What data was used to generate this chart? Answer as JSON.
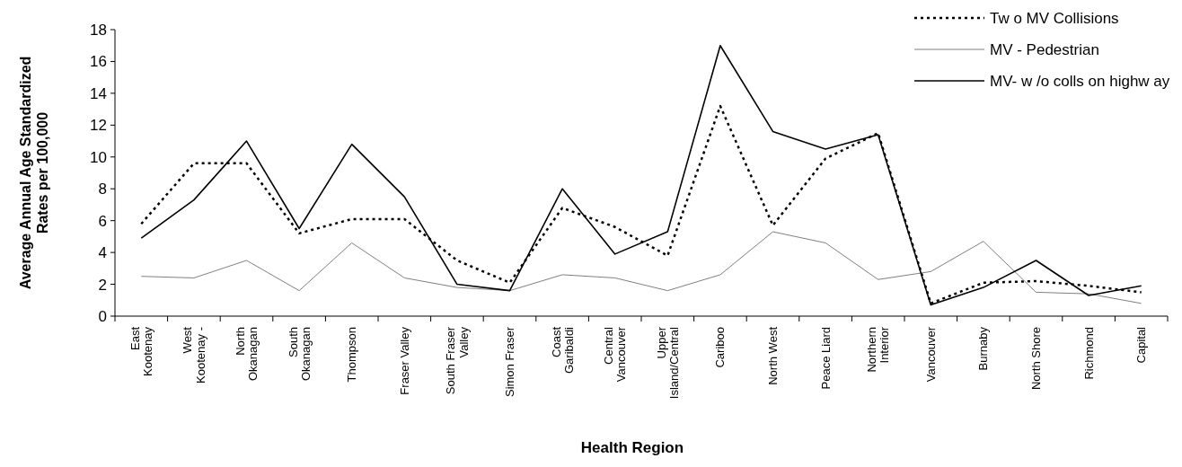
{
  "chart_data": {
    "type": "line",
    "xlabel": "Health Region",
    "ylabel": "Average Annual Age Standardized\nRates per 100,000",
    "categories": [
      "East\nKootenay",
      "West\nKootenay -",
      "North\nOkanagan",
      "South\nOkanagan",
      "Thompson",
      "Fraser Valley",
      "South Fraser\nValley",
      "Simon Fraser",
      "Coast\nGaribaldi",
      "Central\nVancouver",
      "Upper\nIsland/Central",
      "Cariboo",
      "North West",
      "Peace Liard",
      "Northern\nInterior",
      "Vancouver",
      "Burnaby",
      "North Shore",
      "Richmond",
      "Capital"
    ],
    "series": [
      {
        "name": "Tw o MV Collisions",
        "color": "#000000",
        "line_style": "dotted",
        "values": [
          5.8,
          9.6,
          9.6,
          5.2,
          6.1,
          6.1,
          3.5,
          2.1,
          6.8,
          5.6,
          3.8,
          13.2,
          5.7,
          9.9,
          11.5,
          0.8,
          2.1,
          2.2,
          1.9,
          1.5
        ]
      },
      {
        "name": "MV - Pedestrian",
        "color": "#808080",
        "line_style": "solid",
        "values": [
          2.5,
          2.4,
          3.5,
          1.6,
          4.6,
          2.4,
          1.8,
          1.6,
          2.6,
          2.4,
          1.6,
          2.6,
          5.3,
          4.6,
          2.3,
          2.8,
          4.7,
          1.5,
          1.4,
          0.8
        ]
      },
      {
        "name": "MV- w /o colls on highw ay",
        "color": "#000000",
        "line_style": "solid",
        "values": [
          4.9,
          7.3,
          11.0,
          5.5,
          10.8,
          7.5,
          2.0,
          1.6,
          8.0,
          3.9,
          5.3,
          17.0,
          11.6,
          10.5,
          11.4,
          0.7,
          1.8,
          3.5,
          1.3,
          1.9
        ]
      }
    ],
    "ylim": [
      0,
      18
    ],
    "yticks": [
      0,
      2,
      4,
      6,
      8,
      10,
      12,
      14,
      16,
      18
    ],
    "grid": false,
    "legend": "top right"
  }
}
